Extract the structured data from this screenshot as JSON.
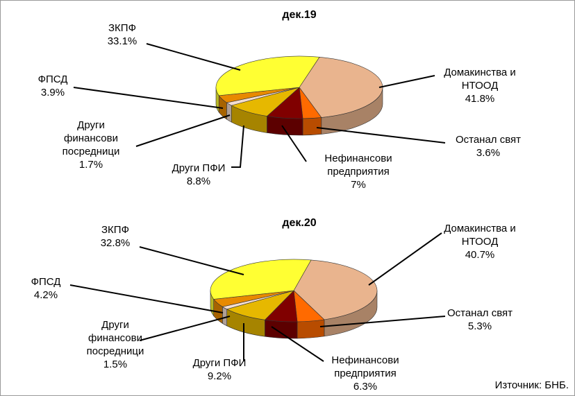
{
  "chart_data": [
    {
      "type": "pie",
      "title": "дек.19",
      "categories": [
        "Домакинства и\nНТООД",
        "Останал свят",
        "Нефинансови\nпредприятия",
        "Други ПФИ",
        "Други\nфинансови\nпосредници",
        "ФПСД",
        "ЗКПФ"
      ],
      "values": [
        41.8,
        3.6,
        7,
        8.8,
        1.7,
        3.9,
        33.1
      ],
      "value_labels": [
        "41.8%",
        "3.6%",
        "7%",
        "8.8%",
        "1.7%",
        "3.9%",
        "33.1%"
      ],
      "colors": [
        "#e9b48e",
        "#ff6a00",
        "#800000",
        "#e6b800",
        "#f3ddd0",
        "#e88a00",
        "#ffff33"
      ]
    },
    {
      "type": "pie",
      "title": "дек.20",
      "categories": [
        "Домакинства и\nНТООД",
        "Останал свят",
        "Нефинансови\nпредприятия",
        "Други ПФИ",
        "Други\nфинансови\nпосредници",
        "ФПСД",
        "ЗКПФ"
      ],
      "values": [
        40.7,
        5.3,
        6.3,
        9.2,
        1.5,
        4.2,
        32.8
      ],
      "value_labels": [
        "40.7%",
        "5.3%",
        "6.3%",
        "9.2%",
        "1.5%",
        "4.2%",
        "32.8%"
      ],
      "colors": [
        "#e9b48e",
        "#ff6a00",
        "#800000",
        "#e6b800",
        "#f3ddd0",
        "#e88a00",
        "#ffff33"
      ]
    }
  ],
  "source": "Източник: БНБ."
}
